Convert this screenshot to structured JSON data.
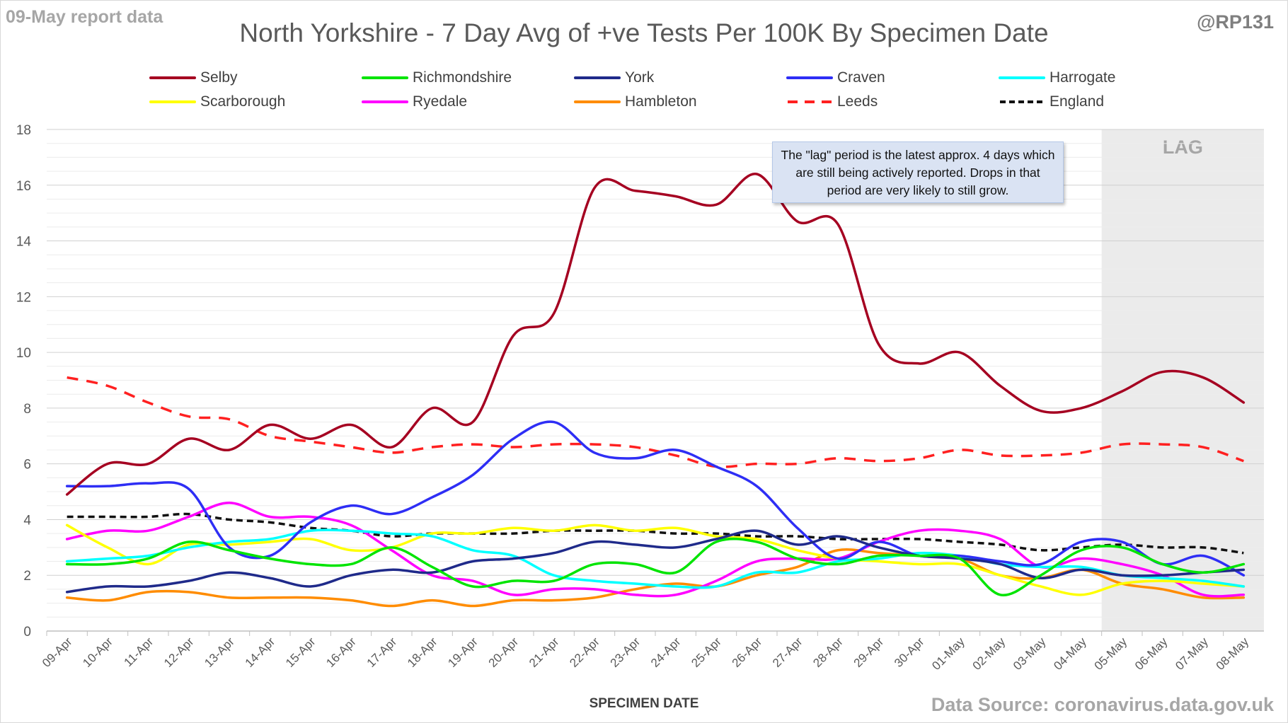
{
  "header": {
    "report_note": "09-May report data",
    "handle": "@RP131",
    "source": "Data Source: coronavirus.data.gov.uk"
  },
  "chart_data": {
    "type": "line",
    "title": "North Yorkshire - 7 Day Avg of +ve Tests Per 100K By Specimen Date",
    "xlabel": "SPECIMEN DATE",
    "ylabel": "",
    "ylim": [
      0,
      18
    ],
    "yticks": [
      0,
      2,
      4,
      6,
      8,
      10,
      12,
      14,
      16,
      18
    ],
    "grid": true,
    "legend_position": "top",
    "categories": [
      "09-Apr",
      "10-Apr",
      "11-Apr",
      "12-Apr",
      "13-Apr",
      "14-Apr",
      "15-Apr",
      "16-Apr",
      "17-Apr",
      "18-Apr",
      "19-Apr",
      "20-Apr",
      "21-Apr",
      "22-Apr",
      "23-Apr",
      "24-Apr",
      "25-Apr",
      "26-Apr",
      "27-Apr",
      "28-Apr",
      "29-Apr",
      "30-Apr",
      "01-May",
      "02-May",
      "03-May",
      "04-May",
      "05-May",
      "06-May",
      "07-May",
      "08-May"
    ],
    "lag_shading": {
      "label": "LAG",
      "from": "05-May",
      "to": "08-May",
      "color": "#ebebeb"
    },
    "annotation": "The \"lag\" period is the latest approx. 4 days which are still being actively reported. Drops in that period are very likely to still grow.",
    "series": [
      {
        "name": "Selby",
        "color": "#a50021",
        "dashed": false,
        "values": [
          4.9,
          6.0,
          6.0,
          6.9,
          6.5,
          7.4,
          6.9,
          7.4,
          6.6,
          8.0,
          7.5,
          10.6,
          11.4,
          15.9,
          15.8,
          15.6,
          15.3,
          16.4,
          14.7,
          14.6,
          10.3,
          9.6,
          10.0,
          8.8,
          7.9,
          8.0,
          8.6,
          9.3,
          9.1,
          8.2
        ]
      },
      {
        "name": "Richmondshire",
        "color": "#00e400",
        "dashed": false,
        "values": [
          2.4,
          2.4,
          2.6,
          3.2,
          2.9,
          2.6,
          2.4,
          2.4,
          3.0,
          2.3,
          1.6,
          1.8,
          1.8,
          2.4,
          2.4,
          2.1,
          3.2,
          3.2,
          2.6,
          2.4,
          2.7,
          2.7,
          2.6,
          1.3,
          2.0,
          2.9,
          3.0,
          2.4,
          2.1,
          2.4
        ]
      },
      {
        "name": "York",
        "color": "#1f2a8a",
        "dashed": false,
        "values": [
          1.4,
          1.6,
          1.6,
          1.8,
          2.1,
          1.9,
          1.6,
          2.0,
          2.2,
          2.1,
          2.5,
          2.6,
          2.8,
          3.2,
          3.1,
          3.0,
          3.3,
          3.6,
          3.1,
          3.4,
          3.0,
          2.7,
          2.6,
          2.4,
          1.9,
          2.2,
          2.0,
          2.0,
          2.1,
          2.2
        ]
      },
      {
        "name": "Craven",
        "color": "#2e2ef5",
        "dashed": false,
        "values": [
          5.2,
          5.2,
          5.3,
          5.1,
          3.0,
          2.7,
          3.9,
          4.5,
          4.2,
          4.8,
          5.6,
          6.9,
          7.5,
          6.4,
          6.2,
          6.5,
          5.9,
          5.2,
          3.7,
          2.6,
          3.2,
          2.7,
          2.7,
          2.5,
          2.4,
          3.2,
          3.2,
          2.4,
          2.7,
          2.0
        ]
      },
      {
        "name": "Harrogate",
        "color": "#00ffff",
        "dashed": false,
        "values": [
          2.5,
          2.6,
          2.7,
          3.0,
          3.2,
          3.3,
          3.6,
          3.6,
          3.5,
          3.4,
          2.9,
          2.7,
          2.0,
          1.8,
          1.7,
          1.6,
          1.6,
          2.1,
          2.1,
          2.5,
          2.6,
          2.8,
          2.7,
          2.4,
          2.3,
          2.3,
          2.0,
          1.9,
          1.8,
          1.6
        ]
      },
      {
        "name": "Scarborough",
        "color": "#ffff00",
        "dashed": false,
        "values": [
          3.8,
          3.0,
          2.4,
          3.1,
          3.1,
          3.2,
          3.3,
          2.9,
          3.0,
          3.5,
          3.5,
          3.7,
          3.6,
          3.8,
          3.6,
          3.7,
          3.4,
          3.3,
          2.9,
          2.6,
          2.5,
          2.4,
          2.4,
          2.0,
          1.6,
          1.3,
          1.7,
          1.8,
          1.7,
          1.6
        ]
      },
      {
        "name": "Ryedale",
        "color": "#ff00ff",
        "dashed": false,
        "values": [
          3.3,
          3.6,
          3.6,
          4.1,
          4.6,
          4.1,
          4.1,
          3.8,
          2.9,
          2.0,
          1.8,
          1.3,
          1.5,
          1.5,
          1.3,
          1.3,
          1.8,
          2.5,
          2.6,
          2.6,
          3.2,
          3.6,
          3.6,
          3.3,
          2.3,
          2.6,
          2.4,
          2.0,
          1.3,
          1.3
        ]
      },
      {
        "name": "Hambleton",
        "color": "#ff8c00",
        "dashed": false,
        "values": [
          1.2,
          1.1,
          1.4,
          1.4,
          1.2,
          1.2,
          1.2,
          1.1,
          0.9,
          1.1,
          0.9,
          1.1,
          1.1,
          1.2,
          1.5,
          1.7,
          1.6,
          2.0,
          2.3,
          2.9,
          2.8,
          2.7,
          2.6,
          2.0,
          1.9,
          2.2,
          1.7,
          1.5,
          1.2,
          1.2
        ]
      },
      {
        "name": "Leeds",
        "color": "#ff2020",
        "dashed": true,
        "values": [
          9.1,
          8.8,
          8.2,
          7.7,
          7.6,
          7.0,
          6.8,
          6.6,
          6.4,
          6.6,
          6.7,
          6.6,
          6.7,
          6.7,
          6.6,
          6.3,
          5.9,
          6.0,
          6.0,
          6.2,
          6.1,
          6.2,
          6.5,
          6.3,
          6.3,
          6.4,
          6.7,
          6.7,
          6.6,
          6.1
        ]
      },
      {
        "name": "England",
        "color": "#111111",
        "dashed": true,
        "values": [
          4.1,
          4.1,
          4.1,
          4.2,
          4.0,
          3.9,
          3.7,
          3.6,
          3.4,
          3.5,
          3.5,
          3.5,
          3.6,
          3.6,
          3.6,
          3.5,
          3.5,
          3.4,
          3.4,
          3.3,
          3.3,
          3.3,
          3.2,
          3.1,
          2.9,
          3.0,
          3.1,
          3.0,
          3.0,
          2.8
        ]
      }
    ]
  }
}
